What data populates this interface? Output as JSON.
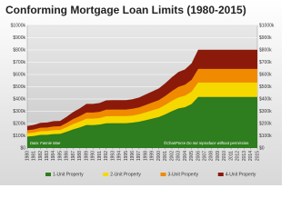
{
  "chart_data": {
    "type": "area",
    "title": "Conforming Mortgage Loan Limits (1980-2015)",
    "source_note": "Data: Fannie Mae",
    "copyright_note": "©ChartForce  Do not reproduce without permission.",
    "x": [
      1980,
      1981,
      1982,
      1983,
      1984,
      1985,
      1986,
      1987,
      1988,
      1989,
      1990,
      1991,
      1992,
      1993,
      1994,
      1995,
      1996,
      1997,
      1998,
      1999,
      2000,
      2001,
      2002,
      2003,
      2004,
      2005,
      2006,
      2007,
      2008,
      2009,
      2010,
      2011,
      2012,
      2013,
      2014,
      2015
    ],
    "xlim": [
      1980,
      2015
    ],
    "ylim": [
      0,
      1000
    ],
    "yticks": [
      {
        "value": 0,
        "label": "$0"
      },
      {
        "value": 100,
        "label": "$100k"
      },
      {
        "value": 200,
        "label": "$200k"
      },
      {
        "value": 300,
        "label": "$300k"
      },
      {
        "value": 400,
        "label": "$400k"
      },
      {
        "value": 500,
        "label": "$500k"
      },
      {
        "value": 600,
        "label": "$600k"
      },
      {
        "value": 700,
        "label": "$700k"
      },
      {
        "value": 800,
        "label": "$800k"
      },
      {
        "value": 900,
        "label": "$900k"
      },
      {
        "value": 1000,
        "label": "$1000k"
      }
    ],
    "grid": true,
    "series": [
      {
        "name": "1-Unit Property",
        "color": "#2e7d1e",
        "values": [
          93.75,
          98.5,
          107,
          108.3,
          114,
          115.3,
          133.25,
          153.1,
          168.7,
          187.6,
          187.45,
          191.25,
          202.3,
          203.15,
          203.15,
          203.15,
          207,
          214.6,
          227.15,
          240,
          252.7,
          275,
          300.7,
          322.7,
          333.7,
          359.65,
          417,
          417,
          417,
          417,
          417,
          417,
          417,
          417,
          417,
          417
        ]
      },
      {
        "name": "2-Unit Property",
        "color": "#f5d800",
        "values": [
          120,
          126,
          136.8,
          138.5,
          145.8,
          147.5,
          170.45,
          195.85,
          215.8,
          239.95,
          239.75,
          244.65,
          258.8,
          259.85,
          259.85,
          259.85,
          264.75,
          274.55,
          290.65,
          307.1,
          323.4,
          351.95,
          384.9,
          413.1,
          427.15,
          460.4,
          533.85,
          533.85,
          533.85,
          533.85,
          533.85,
          533.85,
          533.85,
          533.85,
          533.85,
          533.85
        ]
      },
      {
        "name": "3-Unit Property",
        "color": "#f08a00",
        "values": [
          145,
          152.1,
          165.4,
          167.5,
          176.3,
          178.2,
          206,
          236.7,
          260.85,
          290,
          289.8,
          295.7,
          312.8,
          314.1,
          314.1,
          314.1,
          320,
          331.85,
          351.35,
          371.2,
          390.95,
          425.4,
          465.2,
          499.3,
          516.3,
          556.5,
          645.3,
          645.3,
          645.3,
          645.3,
          645.3,
          645.3,
          645.3,
          645.3,
          645.3,
          645.3
        ]
      },
      {
        "name": "4-Unit Property",
        "color": "#8b1a0a",
        "values": [
          180,
          189.1,
          205.6,
          208.3,
          219.2,
          221.6,
          256,
          294.2,
          324.2,
          360.5,
          360.15,
          367.5,
          388.8,
          390.4,
          390.4,
          390.4,
          397.8,
          412.45,
          436.65,
          461.35,
          485.8,
          528.7,
          578.15,
          620.5,
          641.65,
          691.6,
          801.95,
          801.95,
          801.95,
          801.95,
          801.95,
          801.95,
          801.95,
          801.95,
          801.95,
          801.95
        ]
      }
    ]
  }
}
